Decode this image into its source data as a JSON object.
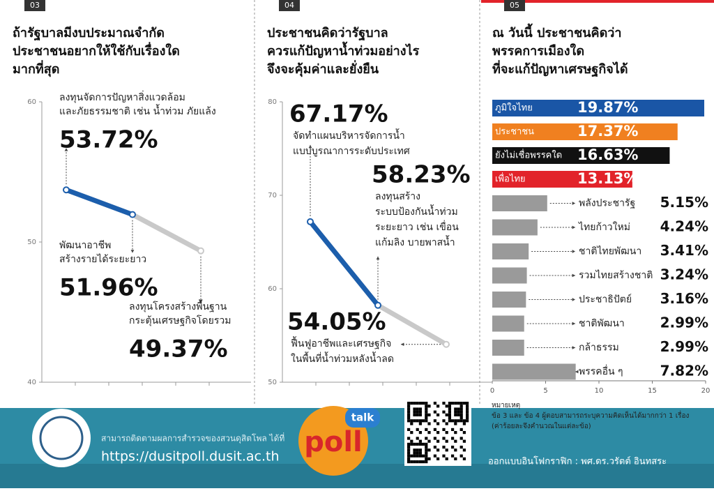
{
  "chart_data": [
    {
      "type": "line",
      "number": "03",
      "title": [
        "ถ้ารัฐบาลมีงบประมาณจำกัด",
        "ประชาชนอยากให้ใช้กับเรื่องใด",
        "มากที่สุด"
      ],
      "categories": [
        [
          "ลงทุนจัดการปัญหาสิ่งแวดล้อม",
          "และภัยธรรมชาติ เช่น น้ำท่วม ภัยแล้ง"
        ],
        [
          "พัฒนาอาชีพ",
          "สร้างรายได้ระยะยาว"
        ],
        [
          "ลงทุนโครงสร้างพื้นฐาน",
          "กระตุ้นเศรษฐกิจโดยรวม"
        ]
      ],
      "values": [
        53.72,
        51.96,
        49.37
      ],
      "value_labels": [
        "53.72%",
        "51.96%",
        "49.37%"
      ],
      "color": "#1c5eac",
      "rest_color": "#c9c9c9",
      "ylim": [
        40,
        60
      ],
      "yticks": [
        40,
        50,
        60
      ]
    },
    {
      "type": "line",
      "number": "04",
      "title": [
        "ประชาชนคิดว่ารัฐบาล",
        "ควรแก้ปัญหาน้ำท่วมอย่างไร",
        "จึงจะคุ้มค่าและยั่งยืน"
      ],
      "categories": [
        [
          "จัดทำแผนบริหารจัดการน้ำ",
          "แบบบูรณาการระดับประเทศ"
        ],
        [
          "ลงทุนสร้าง",
          "ระบบป้องกันน้ำท่วม",
          "ระยะยาว เช่น เขื่อน",
          "แก้มลิง บายพาสน้ำ"
        ],
        [
          "ฟื้นฟูอาชีพและเศรษฐกิจ",
          "ในพื้นที่น้ำท่วมหลังน้ำลด"
        ]
      ],
      "values": [
        67.17,
        58.23,
        54.05
      ],
      "value_labels": [
        "67.17%",
        "58.23%",
        "54.05%"
      ],
      "color": "#1c5eac",
      "rest_color": "#c9c9c9",
      "ylim": [
        50,
        80
      ],
      "yticks": [
        50,
        60,
        70,
        80
      ]
    },
    {
      "type": "hbar",
      "number": "05",
      "title": [
        "ณ วันนี้ ประชาชนคิดว่า",
        "พรรคการเมืองใด",
        "ที่จะแก้ปัญหาเศรษฐกิจได้"
      ],
      "categories": [
        "ภูมิใจไทย",
        "ประชาชน",
        "ยังไม่เชื่อพรรคใด",
        "เพื่อไทย",
        "พลังประชารัฐ",
        "ไทยก้าวใหม่",
        "ชาติไทยพัฒนา",
        "รวมไทยสร้างชาติ",
        "ประชาธิปัตย์",
        "ชาติพัฒนา",
        "กล้าธรรม",
        "พรรคอื่น ๆ"
      ],
      "values": [
        19.87,
        17.37,
        16.63,
        13.13,
        5.15,
        4.24,
        3.41,
        3.24,
        3.16,
        2.99,
        2.99,
        7.82
      ],
      "value_labels": [
        "19.87%",
        "17.37%",
        "16.63%",
        "13.13%",
        "5.15%",
        "4.24%",
        "3.41%",
        "3.24%",
        "3.16%",
        "2.99%",
        "2.99%",
        "7.82%"
      ],
      "colors": [
        "#1a56a6",
        "#f08020",
        "#111111",
        "#e2232a",
        "#9a9a9a",
        "#9a9a9a",
        "#9a9a9a",
        "#9a9a9a",
        "#9a9a9a",
        "#9a9a9a",
        "#9a9a9a",
        "#9a9a9a"
      ],
      "xlim": [
        0,
        20
      ],
      "xticks": [
        0,
        5,
        10,
        15,
        20
      ]
    }
  ],
  "note": {
    "heading": "หมายเหตุ",
    "lines": [
      "ข้อ 3 และ ข้อ 4 ผู้ตอบสามารถระบุความคิดเห็นได้มากกว่า 1 เรื่อง",
      "(ค่าร้อยละจึงคำนวณในแต่ละข้อ)"
    ]
  },
  "footer": {
    "follow": "สามารถติดตามผลการสำรวจของสวนดุสิตโพล ได้ที่",
    "url": "https://dusitpoll.dusit.ac.th",
    "logo": "poll",
    "bubble": "talk",
    "credit": "ออกแบบอินโฟกราฟิก : พศ.ดร.วรัตต์ อินทสระ"
  }
}
